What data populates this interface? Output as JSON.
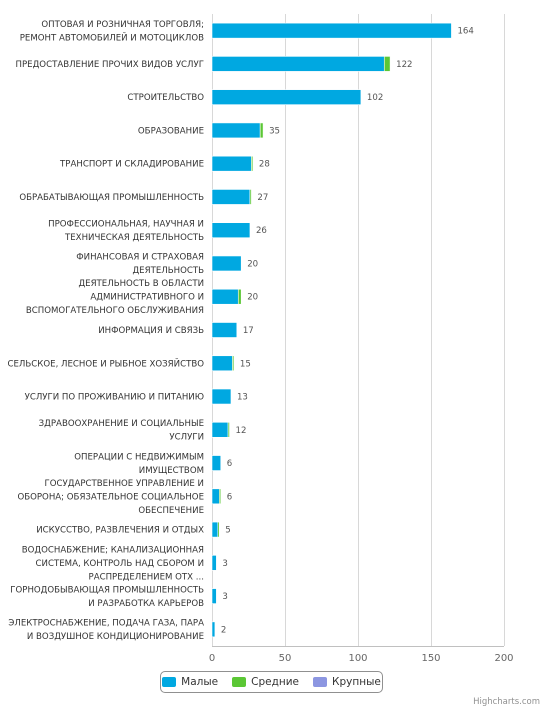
{
  "chart_data": {
    "type": "bar",
    "orientation": "horizontal",
    "stacked": true,
    "categories": [
      "ОПТОВАЯ И РОЗНИЧНАЯ ТОРГОВЛЯ; РЕМОНТ АВТОМОБИЛЕЙ И МОТОЦИКЛОВ",
      "ПРЕДОСТАВЛЕНИЕ ПРОЧИХ ВИДОВ УСЛУГ",
      "СТРОИТЕЛЬСТВО",
      "ОБРАЗОВАНИЕ",
      "ТРАНСПОРТ И СКЛАДИРОВАНИЕ",
      "ОБРАБАТЫВАЮЩАЯ ПРОМЫШЛЕННОСТЬ",
      "ПРОФЕССИОНАЛЬНАЯ, НАУЧНАЯ И ТЕХНИЧЕСКАЯ ДЕЯТЕЛЬНОСТЬ",
      "ФИНАНСОВАЯ И СТРАХОВАЯ ДЕЯТЕЛЬНОСТЬ",
      "ДЕЯТЕЛЬНОСТЬ В ОБЛАСТИ АДМИНИСТРАТИВНОГО И ВСПОМОГАТЕЛЬНОГО ОБСЛУЖИВАНИЯ",
      "ИНФОРМАЦИЯ И СВЯЗЬ",
      "СЕЛЬСКОЕ, ЛЕСНОЕ И РЫБНОЕ ХОЗЯЙСТВО",
      "УСЛУГИ ПО ПРОЖИВАНИЮ И ПИТАНИЮ",
      "ЗДРАВООХРАНЕНИЕ И СОЦИАЛЬНЫЕ УСЛУГИ",
      "ОПЕРАЦИИ С НЕДВИЖИМЫМ ИМУЩЕСТВОМ",
      "ГОСУДАРСТВЕННОЕ УПРАВЛЕНИЕ И ОБОРОНА; ОБЯЗАТЕЛЬНОЕ СОЦИАЛЬНОЕ ОБЕСПЕЧЕНИЕ",
      "ИСКУССТВО, РАЗВЛЕЧЕНИЯ И ОТДЫХ",
      "ВОДОСНАБЖЕНИЕ; КАНАЛИЗАЦИОННАЯ СИСТЕМА, КОНТРОЛЬ НАД СБОРОМ И РАСПРЕДЕЛЕНИЕМ ОТХ ...",
      "ГОРНОДОБЫВАЮЩАЯ ПРОМЫШЛЕННОСТЬ И РАЗРАБОТКА КАРЬЕРОВ",
      "ЭЛЕКТРОСНАБЖЕНИЕ, ПОДАЧА ГАЗА, ПАРА И ВОЗДУШНОЕ КОНДИЦИОНИРОВАНИЕ"
    ],
    "category_lines": [
      [
        "ОПТОВАЯ И РОЗНИЧНАЯ ТОРГОВЛЯ;",
        "РЕМОНТ АВТОМОБИЛЕЙ И МОТОЦИКЛОВ"
      ],
      [
        "ПРЕДОСТАВЛЕНИЕ ПРОЧИХ ВИДОВ УСЛУГ"
      ],
      [
        "СТРОИТЕЛЬСТВО"
      ],
      [
        "ОБРАЗОВАНИЕ"
      ],
      [
        "ТРАНСПОРТ И СКЛАДИРОВАНИЕ"
      ],
      [
        "ОБРАБАТЫВАЮЩАЯ ПРОМЫШЛЕННОСТЬ"
      ],
      [
        "ПРОФЕССИОНАЛЬНАЯ, НАУЧНАЯ И",
        "ТЕХНИЧЕСКАЯ ДЕЯТЕЛЬНОСТЬ"
      ],
      [
        "ФИНАНСОВАЯ И СТРАХОВАЯ",
        "ДЕЯТЕЛЬНОСТЬ"
      ],
      [
        "ДЕЯТЕЛЬНОСТЬ В ОБЛАСТИ",
        "АДМИНИСТРАТИВНОГО И",
        "ВСПОМОГАТЕЛЬНОГО ОБСЛУЖИВАНИЯ"
      ],
      [
        "ИНФОРМАЦИЯ И СВЯЗЬ"
      ],
      [
        "СЕЛЬСКОЕ, ЛЕСНОЕ И РЫБНОЕ ХОЗЯЙСТВО"
      ],
      [
        "УСЛУГИ ПО ПРОЖИВАНИЮ И ПИТАНИЮ"
      ],
      [
        "ЗДРАВООХРАНЕНИЕ И СОЦИАЛЬНЫЕ",
        "УСЛУГИ"
      ],
      [
        "ОПЕРАЦИИ С НЕДВИЖИМЫМ",
        "ИМУЩЕСТВОМ"
      ],
      [
        "ГОСУДАРСТВЕННОЕ УПРАВЛЕНИЕ И",
        "ОБОРОНА; ОБЯЗАТЕЛЬНОЕ СОЦИАЛЬНОЕ",
        "ОБЕСПЕЧЕНИЕ"
      ],
      [
        "ИСКУССТВО, РАЗВЛЕЧЕНИЯ И ОТДЫХ"
      ],
      [
        "ВОДОСНАБЖЕНИЕ; КАНАЛИЗАЦИОННАЯ",
        "СИСТЕМА, КОНТРОЛЬ НАД СБОРОМ И",
        "РАСПРЕДЕЛЕНИЕМ ОТХ ..."
      ],
      [
        "ГОРНОДОБЫВАЮЩАЯ ПРОМЫШЛЕННОСТЬ",
        "И РАЗРАБОТКА КАРЬЕРОВ"
      ],
      [
        "ЭЛЕКТРОСНАБЖЕНИЕ, ПОДАЧА ГАЗА, ПАРА",
        "И ВОЗДУШНОЕ КОНДИЦИОНИРОВАНИЕ"
      ]
    ],
    "series": [
      {
        "name": "Малые",
        "color": "#00a8e1",
        "values": [
          164,
          118,
          102,
          33,
          27,
          26,
          26,
          20,
          18,
          17,
          14,
          13,
          11,
          6,
          5,
          4,
          3,
          3,
          2
        ]
      },
      {
        "name": "Средние",
        "color": "#5bc735",
        "values": [
          0,
          4,
          0,
          2,
          1,
          1,
          0,
          0,
          2,
          0,
          1,
          0,
          1,
          0,
          1,
          1,
          0,
          0,
          0
        ]
      },
      {
        "name": "Крупные",
        "color": "#8c96e1",
        "values": [
          0,
          0,
          0,
          0,
          0,
          0,
          0,
          0,
          0,
          0,
          0,
          0,
          0,
          0,
          0,
          0,
          0,
          0,
          0
        ]
      }
    ],
    "totals": [
      164,
      122,
      102,
      35,
      28,
      27,
      26,
      20,
      20,
      17,
      15,
      13,
      12,
      6,
      6,
      5,
      3,
      3,
      2
    ],
    "x_ticks": [
      0,
      50,
      100,
      150,
      200
    ],
    "xlim": [
      0,
      200
    ],
    "grid": true,
    "legend_position": "bottom-center"
  },
  "credits": "Highcharts.com"
}
